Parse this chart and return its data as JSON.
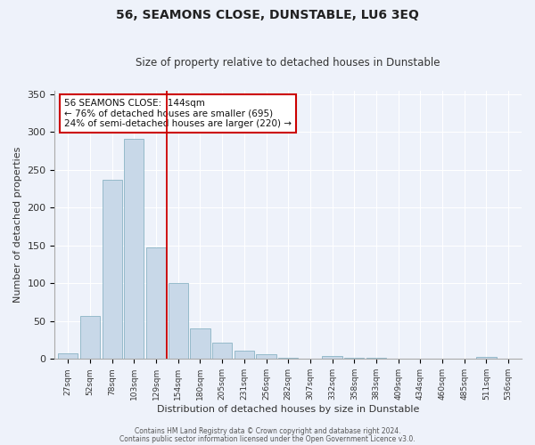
{
  "title": "56, SEAMONS CLOSE, DUNSTABLE, LU6 3EQ",
  "subtitle": "Size of property relative to detached houses in Dunstable",
  "xlabel": "Distribution of detached houses by size in Dunstable",
  "ylabel": "Number of detached properties",
  "bar_color": "#c8d8e8",
  "bar_edge_color": "#7aaabb",
  "background_color": "#eef2fa",
  "grid_color": "#ffffff",
  "categories": [
    "27sqm",
    "52sqm",
    "78sqm",
    "103sqm",
    "129sqm",
    "154sqm",
    "180sqm",
    "205sqm",
    "231sqm",
    "256sqm",
    "282sqm",
    "307sqm",
    "332sqm",
    "358sqm",
    "383sqm",
    "409sqm",
    "434sqm",
    "460sqm",
    "485sqm",
    "511sqm",
    "536sqm"
  ],
  "values": [
    8,
    57,
    237,
    291,
    147,
    101,
    41,
    22,
    11,
    6,
    2,
    0,
    4,
    2,
    2,
    0,
    0,
    0,
    0,
    3,
    0
  ],
  "ylim": [
    0,
    355
  ],
  "yticks": [
    0,
    50,
    100,
    150,
    200,
    250,
    300,
    350
  ],
  "property_line_x": 4.5,
  "property_line_color": "#cc0000",
  "annotation_text": "56 SEAMONS CLOSE:  144sqm\n← 76% of detached houses are smaller (695)\n24% of semi-detached houses are larger (220) →",
  "annotation_box_color": "#cc0000",
  "title_fontsize": 10,
  "subtitle_fontsize": 8.5,
  "footnote1": "Contains HM Land Registry data © Crown copyright and database right 2024.",
  "footnote2": "Contains public sector information licensed under the Open Government Licence v3.0."
}
